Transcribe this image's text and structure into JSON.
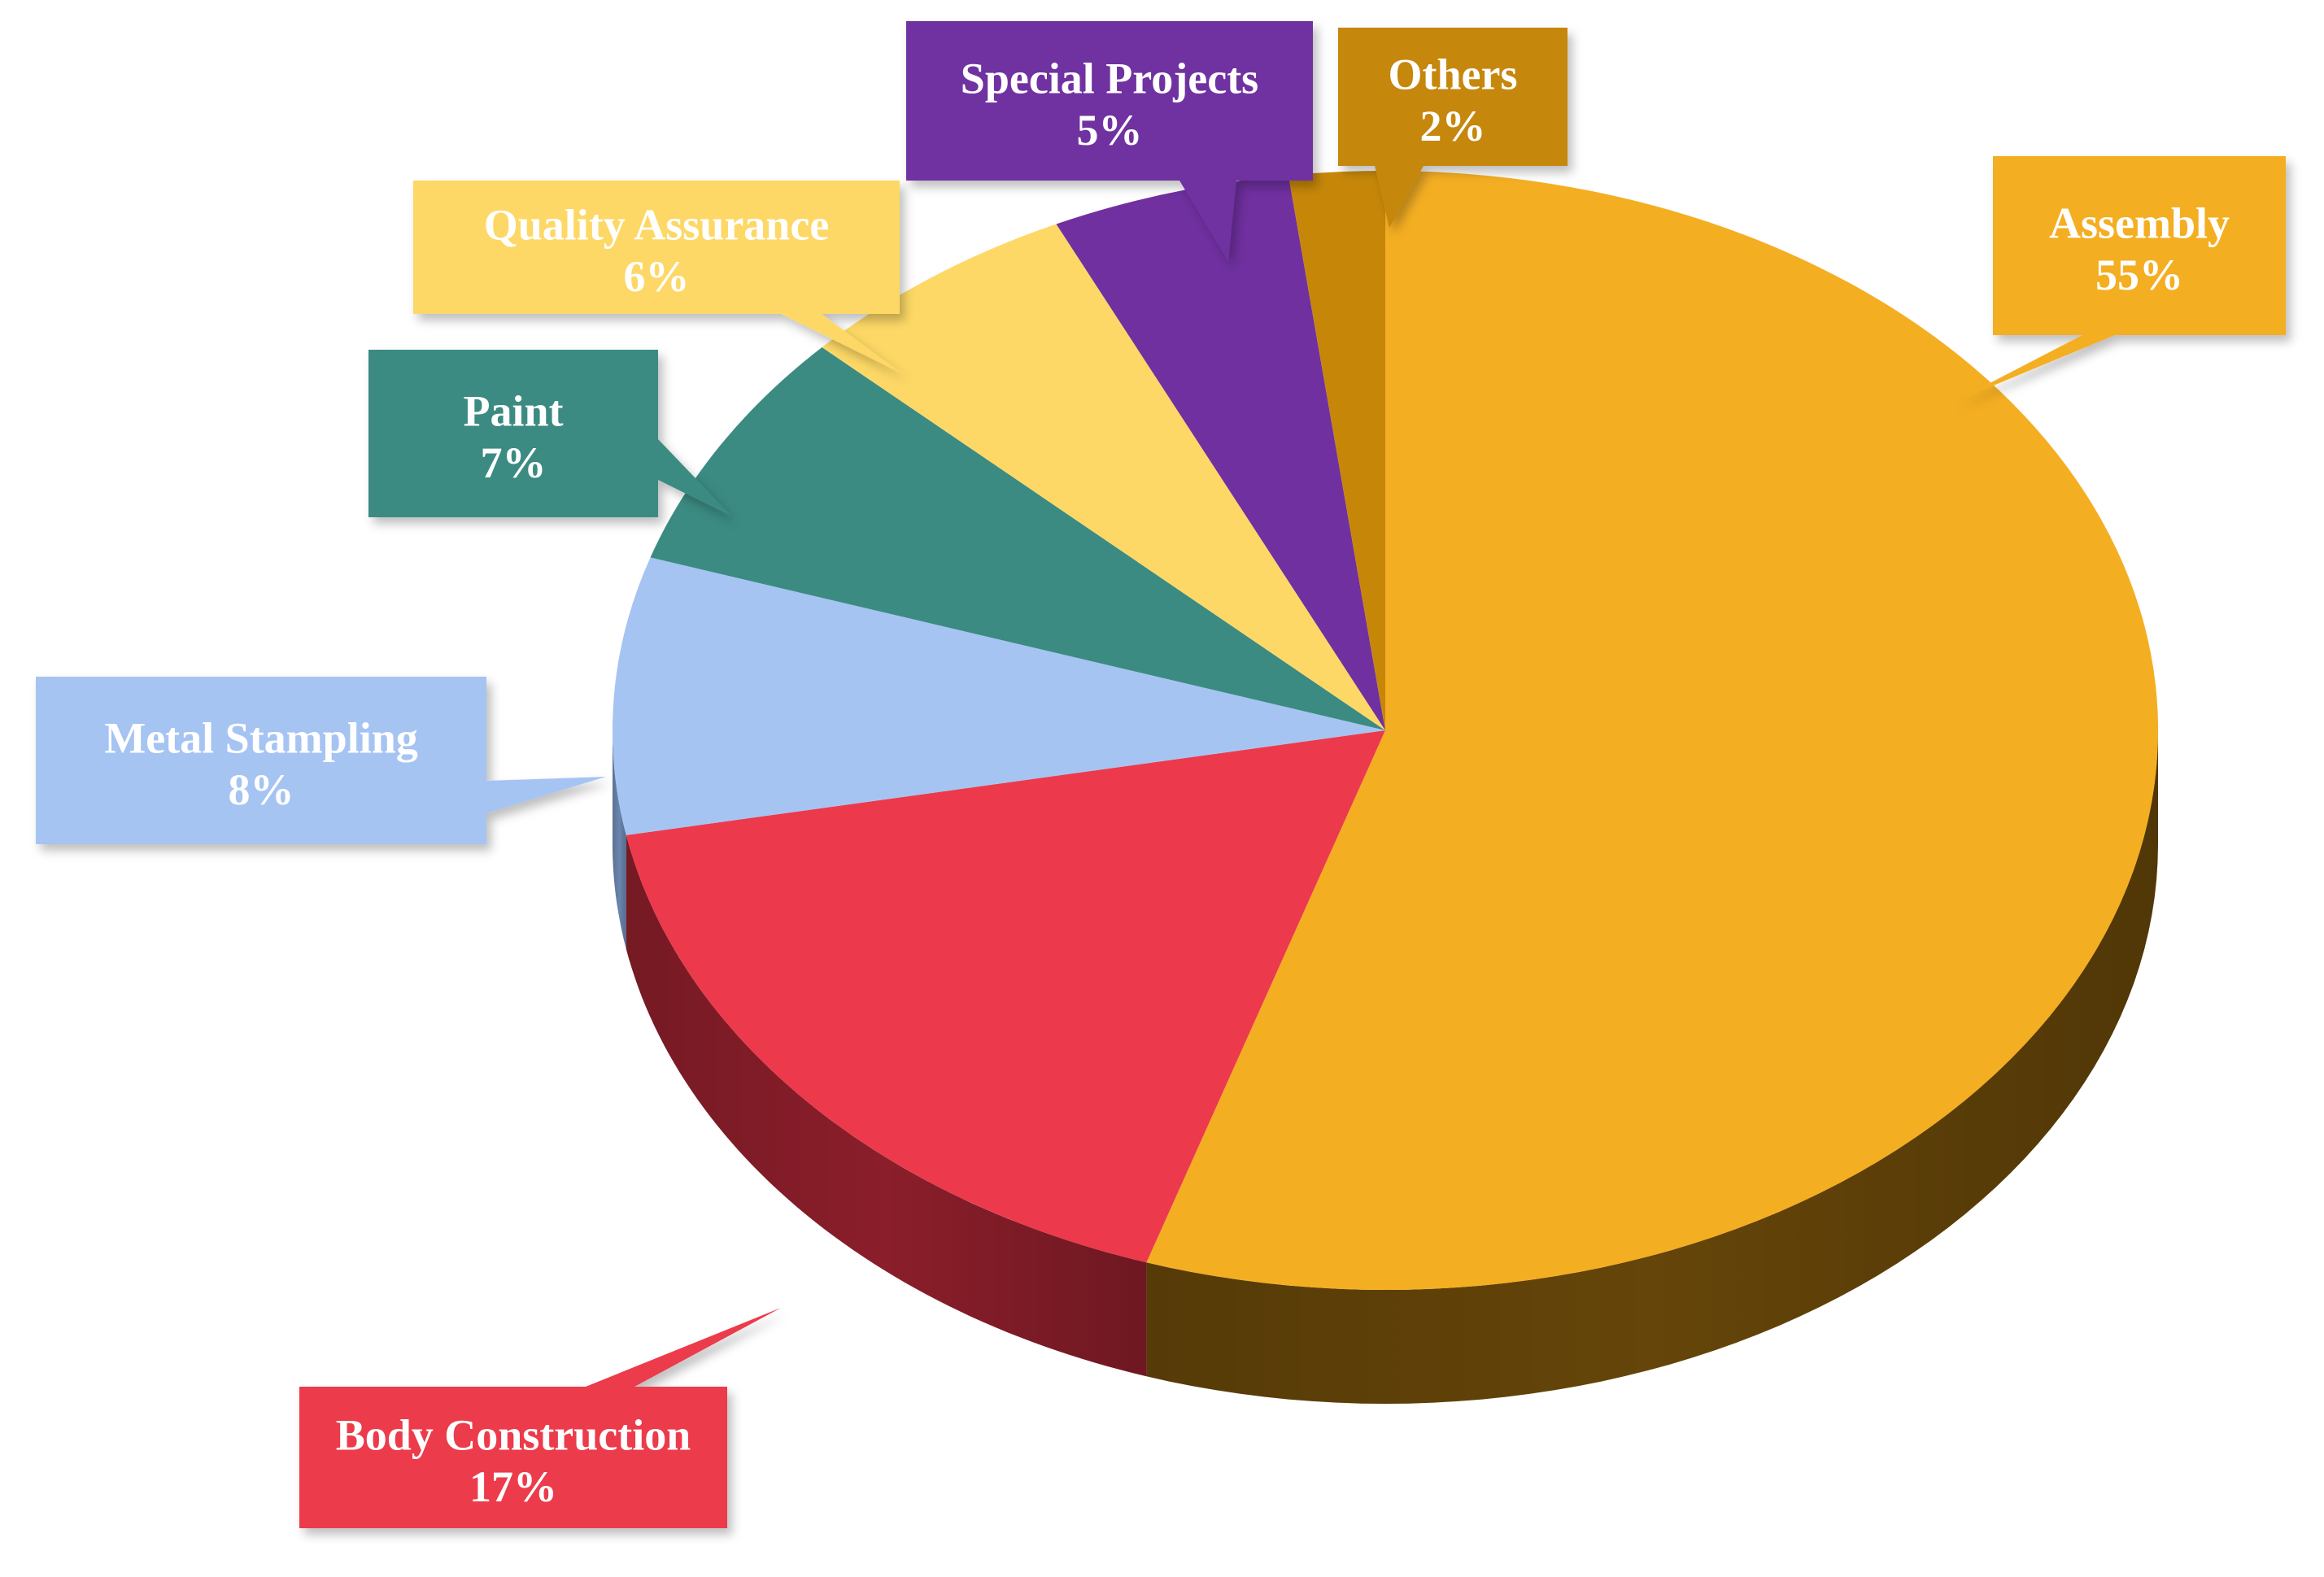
{
  "chart_data": {
    "type": "pie",
    "style": "3d",
    "legend": "none",
    "slices": [
      {
        "label": "Assembly",
        "value": 55,
        "value_label": "55%",
        "color": "#F4AE22",
        "side_color": "#654509"
      },
      {
        "label": "Body Construction",
        "value": 17,
        "value_label": "17%",
        "color": "#EC3A4C",
        "side_color": "#8A1E2A"
      },
      {
        "label": "Metal Stampling",
        "value": 8,
        "value_label": "8%",
        "color": "#A6C4F2",
        "side_color": "#6A85AE"
      },
      {
        "label": "Paint",
        "value": 7,
        "value_label": "7%",
        "color": "#3B8B82",
        "side_color": "#24544F"
      },
      {
        "label": "Quality Assurance",
        "value": 6,
        "value_label": "6%",
        "color": "#FDD866",
        "side_color": "#9A8236"
      },
      {
        "label": "Special Projects",
        "value": 5,
        "value_label": "5%",
        "color": "#7030A0",
        "side_color": "#3F1A5C"
      },
      {
        "label": "Others",
        "value": 2,
        "value_label": "2%",
        "color": "#C68709",
        "side_color": "#9B6A05"
      }
    ]
  }
}
